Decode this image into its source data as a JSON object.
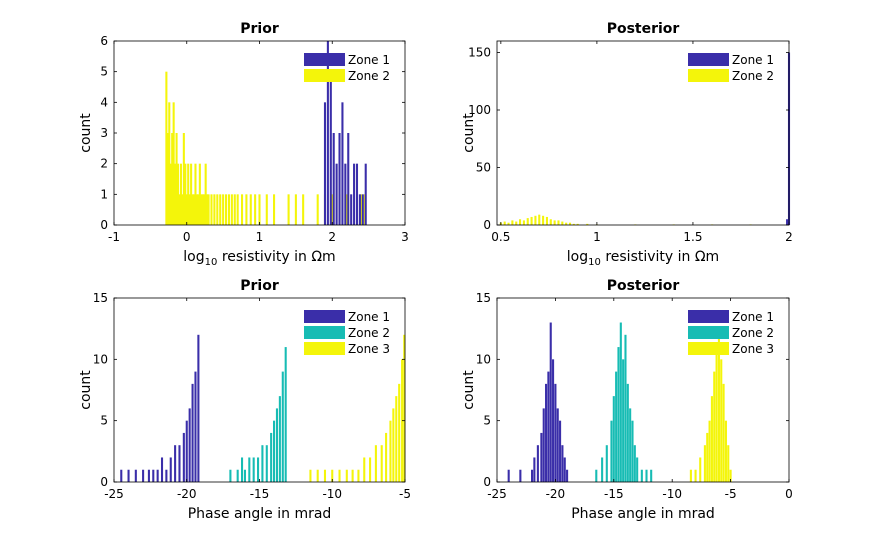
{
  "colors": {
    "zone1": "#3a2ea9",
    "zone2": "#f4f50a",
    "zone2_phase": "#17bcb4",
    "zone3": "#f4f50a",
    "axis": "#000000"
  },
  "chart_data": [
    {
      "id": "res-prior",
      "type": "bar",
      "title": "Prior",
      "xlabel_pre": "log",
      "xlabel_sub": "10",
      "xlabel_post": " resistivity in Ωm",
      "ylabel": "count",
      "xlim": [
        -1,
        3
      ],
      "ylim": [
        0,
        6
      ],
      "xticks": [
        "-1",
        "0",
        "1",
        "2",
        "3"
      ],
      "yticks": [
        "0",
        "1",
        "2",
        "3",
        "4",
        "5",
        "6"
      ],
      "legend": [
        "Zone 1",
        "Zone 2"
      ],
      "legend_position": "top-right",
      "series": [
        {
          "name": "Zone 2",
          "color": "zone2",
          "x": [
            -0.28,
            -0.26,
            -0.24,
            -0.22,
            -0.2,
            -0.18,
            -0.16,
            -0.14,
            -0.12,
            -0.1,
            -0.08,
            -0.06,
            -0.04,
            -0.02,
            0.0,
            0.02,
            0.04,
            0.06,
            0.08,
            0.1,
            0.12,
            0.14,
            0.16,
            0.18,
            0.2,
            0.22,
            0.24,
            0.26,
            0.28,
            0.3,
            0.34,
            0.38,
            0.42,
            0.46,
            0.5,
            0.54,
            0.58,
            0.62,
            0.66,
            0.7,
            0.76,
            0.82,
            0.88,
            0.94,
            1.0,
            1.1,
            1.2,
            1.3,
            1.4,
            1.5,
            1.6,
            1.7,
            1.8,
            1.9,
            2.0,
            2.1,
            2.2,
            2.3,
            2.4,
            2.45
          ],
          "values": [
            5,
            3,
            4,
            2,
            3,
            4,
            2,
            3,
            2,
            1,
            2,
            1,
            3,
            2,
            1,
            2,
            1,
            2,
            1,
            1,
            2,
            1,
            1,
            2,
            1,
            1,
            1,
            2,
            1,
            1,
            1,
            1,
            1,
            1,
            1,
            1,
            1,
            1,
            1,
            1,
            1,
            1,
            1,
            1,
            1,
            1,
            1,
            0,
            1,
            1,
            1,
            0,
            1,
            1,
            1,
            1,
            1,
            0,
            1,
            1
          ]
        },
        {
          "name": "Zone 1",
          "color": "zone1",
          "x": [
            1.9,
            1.94,
            1.98,
            2.02,
            2.06,
            2.1,
            2.14,
            2.18,
            2.22,
            2.26,
            2.3,
            2.34,
            2.38,
            2.42,
            2.46
          ],
          "values": [
            4,
            6,
            5,
            3,
            2,
            3,
            4,
            2,
            3,
            1,
            2,
            2,
            1,
            1,
            2
          ]
        }
      ]
    },
    {
      "id": "res-post",
      "type": "bar",
      "title": "Posterior",
      "xlabel_pre": "log",
      "xlabel_sub": "10",
      "xlabel_post": " resistivity in Ωm",
      "ylabel": "count",
      "xlim": [
        0.48,
        2
      ],
      "ylim": [
        0,
        160
      ],
      "xticks_at": [
        0.5,
        1,
        1.5,
        2
      ],
      "xticks": [
        "0.5",
        "1",
        "1.5",
        "2"
      ],
      "yticks_at": [
        0,
        50,
        100,
        150
      ],
      "yticks": [
        "0",
        "50",
        "100",
        "150"
      ],
      "legend": [
        "Zone 1",
        "Zone 2"
      ],
      "legend_position": "top-right",
      "series": [
        {
          "name": "Zone 2",
          "color": "zone2",
          "x": [
            0.5,
            0.52,
            0.54,
            0.56,
            0.58,
            0.6,
            0.62,
            0.64,
            0.66,
            0.68,
            0.7,
            0.72,
            0.74,
            0.76,
            0.78,
            0.8,
            0.82,
            0.84,
            0.86,
            0.88,
            0.9,
            0.95,
            1.0,
            1.2,
            1.4,
            1.6,
            1.8
          ],
          "values": [
            2,
            3,
            2,
            4,
            3,
            5,
            4,
            6,
            7,
            8,
            9,
            8,
            7,
            5,
            4,
            4,
            3,
            2,
            2,
            1,
            1,
            1,
            0.5,
            0.5,
            0.5,
            0.5,
            0.5
          ]
        },
        {
          "name": "Zone 1",
          "color": "zone1",
          "x": [
            1.99,
            2.0
          ],
          "values": [
            5,
            150
          ]
        }
      ]
    },
    {
      "id": "phase-prior",
      "type": "bar",
      "title": "Prior",
      "xlabel": "Phase angle in mrad",
      "ylabel": "count",
      "xlim": [
        -25,
        -5
      ],
      "ylim": [
        0,
        15
      ],
      "xticks_at": [
        -25,
        -20,
        -15,
        -10,
        -5
      ],
      "xticks": [
        "-25",
        "-20",
        "-15",
        "-10",
        "-5"
      ],
      "yticks_at": [
        0,
        5,
        10,
        15
      ],
      "yticks": [
        "0",
        "5",
        "10",
        "15"
      ],
      "legend": [
        "Zone 1",
        "Zone 2",
        "Zone 3"
      ],
      "legend_position": "top-right",
      "series": [
        {
          "name": "Zone 1",
          "color": "zone1",
          "x": [
            -24.5,
            -24,
            -23.5,
            -23,
            -22.6,
            -22.3,
            -22,
            -21.7,
            -21.4,
            -21.1,
            -20.8,
            -20.5,
            -20.2,
            -20,
            -19.8,
            -19.6,
            -19.4,
            -19.2
          ],
          "values": [
            1,
            1,
            1,
            1,
            1,
            1,
            1,
            2,
            1,
            2,
            3,
            3,
            4,
            5,
            6,
            8,
            9,
            12
          ]
        },
        {
          "name": "Zone 2",
          "color": "zone2_phase",
          "x": [
            -17,
            -16.5,
            -16.2,
            -16,
            -15.7,
            -15.4,
            -15.1,
            -14.8,
            -14.5,
            -14.2,
            -14,
            -13.8,
            -13.6,
            -13.4,
            -13.2
          ],
          "values": [
            1,
            1,
            2,
            1,
            2,
            2,
            2,
            3,
            3,
            4,
            5,
            6,
            7,
            9,
            11
          ]
        },
        {
          "name": "Zone 3",
          "color": "zone3",
          "x": [
            -11.5,
            -11,
            -10.5,
            -10,
            -9.5,
            -9,
            -8.6,
            -8.2,
            -7.8,
            -7.4,
            -7,
            -6.6,
            -6.3,
            -6,
            -5.8,
            -5.6,
            -5.4,
            -5.2,
            -5.05
          ],
          "values": [
            1,
            1,
            1,
            1,
            1,
            1,
            1,
            1,
            2,
            2,
            3,
            3,
            4,
            5,
            6,
            7,
            8,
            10,
            12
          ]
        }
      ]
    },
    {
      "id": "phase-post",
      "type": "bar",
      "title": "Posterior",
      "xlabel": "Phase angle in mrad",
      "ylabel": "count",
      "xlim": [
        -25,
        0
      ],
      "ylim": [
        0,
        15
      ],
      "xticks_at": [
        -25,
        -20,
        -15,
        -10,
        -5,
        0
      ],
      "xticks": [
        "-25",
        "-20",
        "-15",
        "-10",
        "-5",
        "0"
      ],
      "yticks_at": [
        0,
        5,
        10,
        15
      ],
      "yticks": [
        "0",
        "5",
        "10",
        "15"
      ],
      "legend": [
        "Zone 1",
        "Zone 2",
        "Zone 3"
      ],
      "legend_position": "top-right",
      "series": [
        {
          "name": "Zone 1",
          "color": "zone1",
          "x": [
            -24,
            -23,
            -22,
            -21.8,
            -21.5,
            -21.2,
            -21,
            -20.8,
            -20.6,
            -20.4,
            -20.2,
            -20,
            -19.8,
            -19.6,
            -19.4,
            -19.2,
            -19
          ],
          "values": [
            1,
            1,
            1,
            2,
            3,
            4,
            6,
            8,
            9,
            13,
            10,
            8,
            6,
            5,
            3,
            2,
            1
          ]
        },
        {
          "name": "Zone 2",
          "color": "zone2_phase",
          "x": [
            -16.5,
            -16,
            -15.6,
            -15.2,
            -15,
            -14.8,
            -14.6,
            -14.4,
            -14.2,
            -14,
            -13.8,
            -13.6,
            -13.4,
            -13.2,
            -13,
            -12.6,
            -12.2,
            -11.8
          ],
          "values": [
            1,
            2,
            3,
            5,
            7,
            9,
            11,
            13,
            10,
            12,
            8,
            6,
            5,
            3,
            2,
            1,
            1,
            1
          ]
        },
        {
          "name": "Zone 3",
          "color": "zone3",
          "x": [
            -8.4,
            -8,
            -7.6,
            -7.2,
            -7,
            -6.8,
            -6.6,
            -6.4,
            -6.2,
            -6,
            -5.8,
            -5.6,
            -5.4,
            -5.2,
            -5
          ],
          "values": [
            1,
            1,
            2,
            3,
            4,
            5,
            7,
            9,
            11,
            12,
            10,
            8,
            5,
            3,
            1
          ]
        }
      ]
    }
  ]
}
